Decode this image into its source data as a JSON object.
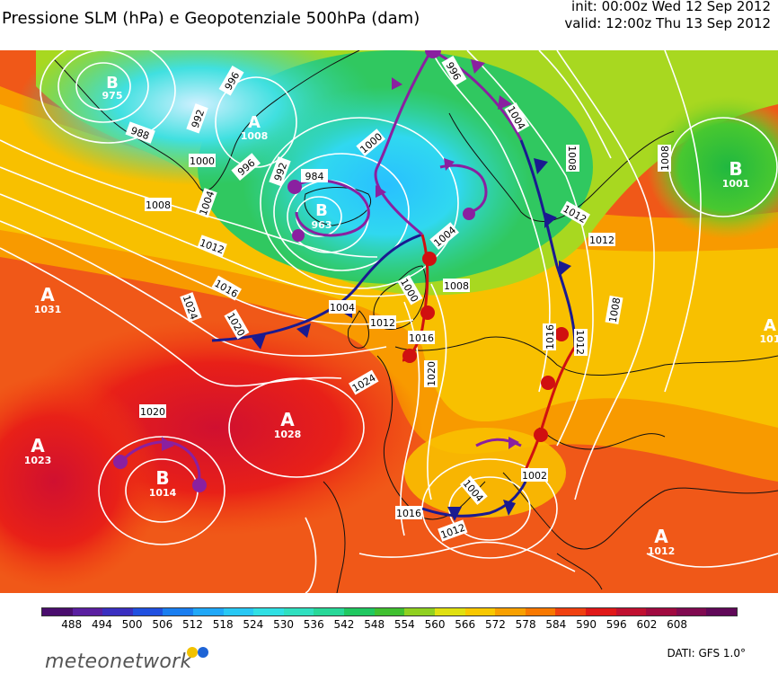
{
  "header": {
    "title": "Pressione SLM (hPa) e Geopotenziale 500hPa (dam)",
    "init": "init: 00:00z Wed 12 Sep 2012",
    "valid": "valid: 12:00z Thu 13 Sep 2012"
  },
  "centers": [
    {
      "letter": "B",
      "value": "975"
    },
    {
      "letter": "A",
      "value": "1008"
    },
    {
      "letter": "B",
      "value": "963"
    },
    {
      "letter": "B",
      "value": "1001"
    },
    {
      "letter": "A",
      "value": "1031"
    },
    {
      "letter": "A",
      "value": "1028"
    },
    {
      "letter": "A",
      "value": "1023"
    },
    {
      "letter": "B",
      "value": "1014"
    },
    {
      "letter": "A",
      "value": "1012"
    },
    {
      "letter": "A",
      "value": "101"
    }
  ],
  "isobar_labels": [
    "996",
    "992",
    "988",
    "984",
    "992",
    "996",
    "1000",
    "1004",
    "1008",
    "1012",
    "1016",
    "1020",
    "1024",
    "996",
    "1000",
    "1004",
    "1008",
    "1012",
    "1016",
    "1020",
    "1024",
    "1004",
    "1000",
    "1004",
    "1008",
    "1012",
    "1008",
    "1012",
    "1008",
    "1012",
    "1016",
    "1020",
    "1002",
    "1004",
    "1012",
    "1016"
  ],
  "colorbar": {
    "labels": [
      "488",
      "494",
      "500",
      "506",
      "512",
      "518",
      "524",
      "530",
      "536",
      "542",
      "548",
      "554",
      "560",
      "566",
      "572",
      "578",
      "584",
      "590",
      "596",
      "602",
      "608"
    ],
    "colors": [
      "#4a0d6e",
      "#5a1fa0",
      "#3a2fc0",
      "#2050e0",
      "#1a7ef0",
      "#20a8f8",
      "#28c8f4",
      "#30e0e4",
      "#30e0c0",
      "#28d898",
      "#20c860",
      "#40c030",
      "#90d020",
      "#e0e010",
      "#f8c800",
      "#f8a000",
      "#f87800",
      "#f04010",
      "#e01818",
      "#c01030",
      "#a00a40",
      "#800a50",
      "#600858"
    ]
  },
  "brand": {
    "logo_text": "meteonetwork",
    "dot_colors": [
      "#f2c200",
      "#1e64d6"
    ],
    "source": "DATI:  GFS  1.0°"
  }
}
